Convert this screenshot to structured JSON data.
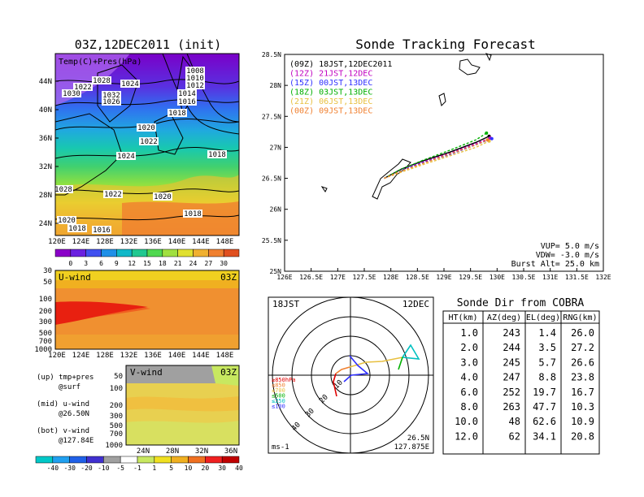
{
  "left_panel": {
    "title": "03Z,12DEC2011 (init)",
    "map_label": "Temp(C)+Pres(hPa)",
    "lat_ticks": [
      "44N",
      "40N",
      "36N",
      "32N",
      "28N",
      "24N"
    ],
    "lon_ticks": [
      "120E",
      "124E",
      "128E",
      "132E",
      "136E",
      "140E",
      "144E",
      "148E"
    ],
    "pressure_labels": [
      "1028",
      "1022",
      "1030",
      "1032",
      "1026",
      "1024",
      "1008",
      "1010",
      "1012",
      "1014",
      "1016",
      "1018",
      "1020",
      "1022",
      "1024",
      "1018",
      "1028",
      "1022",
      "1020",
      "1018",
      "1020",
      "1018",
      "1016"
    ],
    "temp_colorbar": [
      "0",
      "3",
      "6",
      "9",
      "12",
      "15",
      "18",
      "21",
      "24",
      "27",
      "30"
    ]
  },
  "uwind_panel": {
    "title": "U-wind",
    "time": "03Z",
    "p_ticks": [
      "30",
      "50",
      "100",
      "200",
      "300",
      "500",
      "700",
      "1000"
    ],
    "lon_ticks": [
      "120E",
      "124E",
      "128E",
      "132E",
      "136E",
      "140E",
      "144E",
      "148E"
    ]
  },
  "vwind_panel": {
    "title": "V-wind",
    "time": "03Z",
    "p_ticks": [
      "50",
      "100",
      "200",
      "300",
      "500",
      "700",
      "1000"
    ],
    "lat_ticks": [
      "24N",
      "28N",
      "32N",
      "36N"
    ]
  },
  "notes": {
    "up": "(up) tmp+pres",
    "up2": "@surf",
    "mid": "(mid) u-wind",
    "mid2": "@26.50N",
    "bot": "(bot) v-wind",
    "bot2": "@127.84E"
  },
  "wind_colorbar": [
    "-40",
    "-30",
    "-20",
    "-10",
    "-5",
    "-1",
    "1",
    "5",
    "10",
    "20",
    "30",
    "40"
  ],
  "tracking": {
    "title": "Sonde Tracking Forecast",
    "lat_ticks": [
      "28.5N",
      "28N",
      "27.5N",
      "27N",
      "26.5N",
      "26N",
      "25.5N",
      "25N"
    ],
    "lon_ticks": [
      "126E",
      "126.5E",
      "127E",
      "127.5E",
      "128E",
      "128.5E",
      "129E",
      "129.5E",
      "130E",
      "130.5E",
      "131E",
      "131.5E",
      "132E"
    ],
    "legend": [
      {
        "label": "(09Z) 18JST,12DEC2011",
        "color": "#000000"
      },
      {
        "label": "(12Z) 21JST,12DEC",
        "color": "#c000c0"
      },
      {
        "label": "(15Z) 00JST,13DEC",
        "color": "#3030ff"
      },
      {
        "label": "(18Z) 03JST,13DEC",
        "color": "#00b000"
      },
      {
        "label": "(21Z) 06JST,13DEC",
        "color": "#e8c040"
      },
      {
        "label": "(00Z) 09JST,13DEC",
        "color": "#f08030"
      }
    ],
    "params": [
      "VUP= 5.0 m/s",
      "VDW= -3.0 m/s",
      "Burst Alt= 25.0 km"
    ]
  },
  "chart_data": {
    "type": "line",
    "title": "Sonde Tracking Forecast",
    "xlim": [
      126,
      132
    ],
    "ylim": [
      25,
      28.5
    ],
    "series": [
      {
        "name": "(09Z) 18JST,12DEC2011",
        "color": "#000000",
        "x": [
          127.875,
          128.2,
          128.6,
          129.1,
          129.6,
          129.85
        ],
        "y": [
          26.5,
          26.65,
          26.78,
          26.92,
          27.08,
          27.18
        ]
      },
      {
        "name": "(12Z) 21JST,12DEC",
        "color": "#c000c0",
        "x": [
          127.875,
          128.2,
          128.6,
          129.1,
          129.6,
          129.87
        ],
        "y": [
          26.5,
          26.64,
          26.76,
          26.9,
          27.06,
          27.15
        ]
      },
      {
        "name": "(15Z) 00JST,13DEC",
        "color": "#3030ff",
        "x": [
          127.875,
          128.2,
          128.6,
          129.1,
          129.6,
          129.9
        ],
        "y": [
          26.5,
          26.63,
          26.75,
          26.88,
          27.04,
          27.14
        ]
      },
      {
        "name": "(18Z) 03JST,13DEC",
        "color": "#00b000",
        "x": [
          127.875,
          128.2,
          128.6,
          129.1,
          129.6,
          129.8
        ],
        "y": [
          26.5,
          26.65,
          26.79,
          26.95,
          27.12,
          27.23
        ]
      },
      {
        "name": "(21Z) 06JST,13DEC",
        "color": "#e8c040",
        "x": [
          127.875,
          128.2,
          128.6,
          129.1,
          129.6,
          129.85
        ],
        "y": [
          26.5,
          26.6,
          26.72,
          26.86,
          27.0,
          27.1
        ]
      },
      {
        "name": "(00Z) 09JST,13DEC",
        "color": "#f08030",
        "x": [
          127.875,
          128.2,
          128.6,
          129.1,
          129.6,
          129.82
        ],
        "y": [
          26.5,
          26.62,
          26.74,
          26.89,
          27.04,
          27.12
        ]
      }
    ]
  },
  "polar": {
    "time": "18JST",
    "date": "12DEC",
    "pos1": "26.5N",
    "pos2": "127.875E",
    "unit": "ms-1",
    "ring_labels": [
      "10",
      "20",
      "30",
      "40"
    ],
    "levels": [
      {
        "label": "≥850hPa",
        "color": "#e00000"
      },
      {
        "label": "≤850",
        "color": "#f08030"
      },
      {
        "label": "≤700",
        "color": "#e8c040"
      },
      {
        "label": "≤500",
        "color": "#00b000"
      },
      {
        "label": "≤250",
        "color": "#00c0c0"
      },
      {
        "label": "≤100",
        "color": "#3030ff"
      }
    ]
  },
  "sonde_table": {
    "title": "Sonde Dir from COBRA",
    "headers": [
      "HT(km)",
      "AZ(deg)",
      "EL(deg)",
      "RNG(km)"
    ],
    "rows": [
      [
        "1.0",
        "243",
        "1.4",
        "26.0"
      ],
      [
        "2.0",
        "244",
        "3.5",
        "27.2"
      ],
      [
        "3.0",
        "245",
        "5.7",
        "26.6"
      ],
      [
        "4.0",
        "247",
        "8.8",
        "23.8"
      ],
      [
        "6.0",
        "252",
        "19.7",
        "16.7"
      ],
      [
        "8.0",
        "263",
        "47.7",
        "10.3"
      ],
      [
        "10.0",
        "48",
        "62.6",
        "10.9"
      ],
      [
        "12.0",
        "62",
        "34.1",
        "20.8"
      ]
    ]
  },
  "colors": {
    "temp_scale": [
      "#8a00c8",
      "#6a20e0",
      "#4050f0",
      "#2090e8",
      "#10b8c8",
      "#20c890",
      "#50d850",
      "#a0e040",
      "#e0e030",
      "#f0b030",
      "#f08030",
      "#e05020"
    ],
    "wind_scale": [
      "#00c8c8",
      "#20a0f0",
      "#2060e8",
      "#4030d0",
      "#a0a0a0",
      "#ffffff",
      "#c8e860",
      "#f0e020",
      "#f0b020",
      "#f07020",
      "#f02020",
      "#c00000"
    ]
  }
}
